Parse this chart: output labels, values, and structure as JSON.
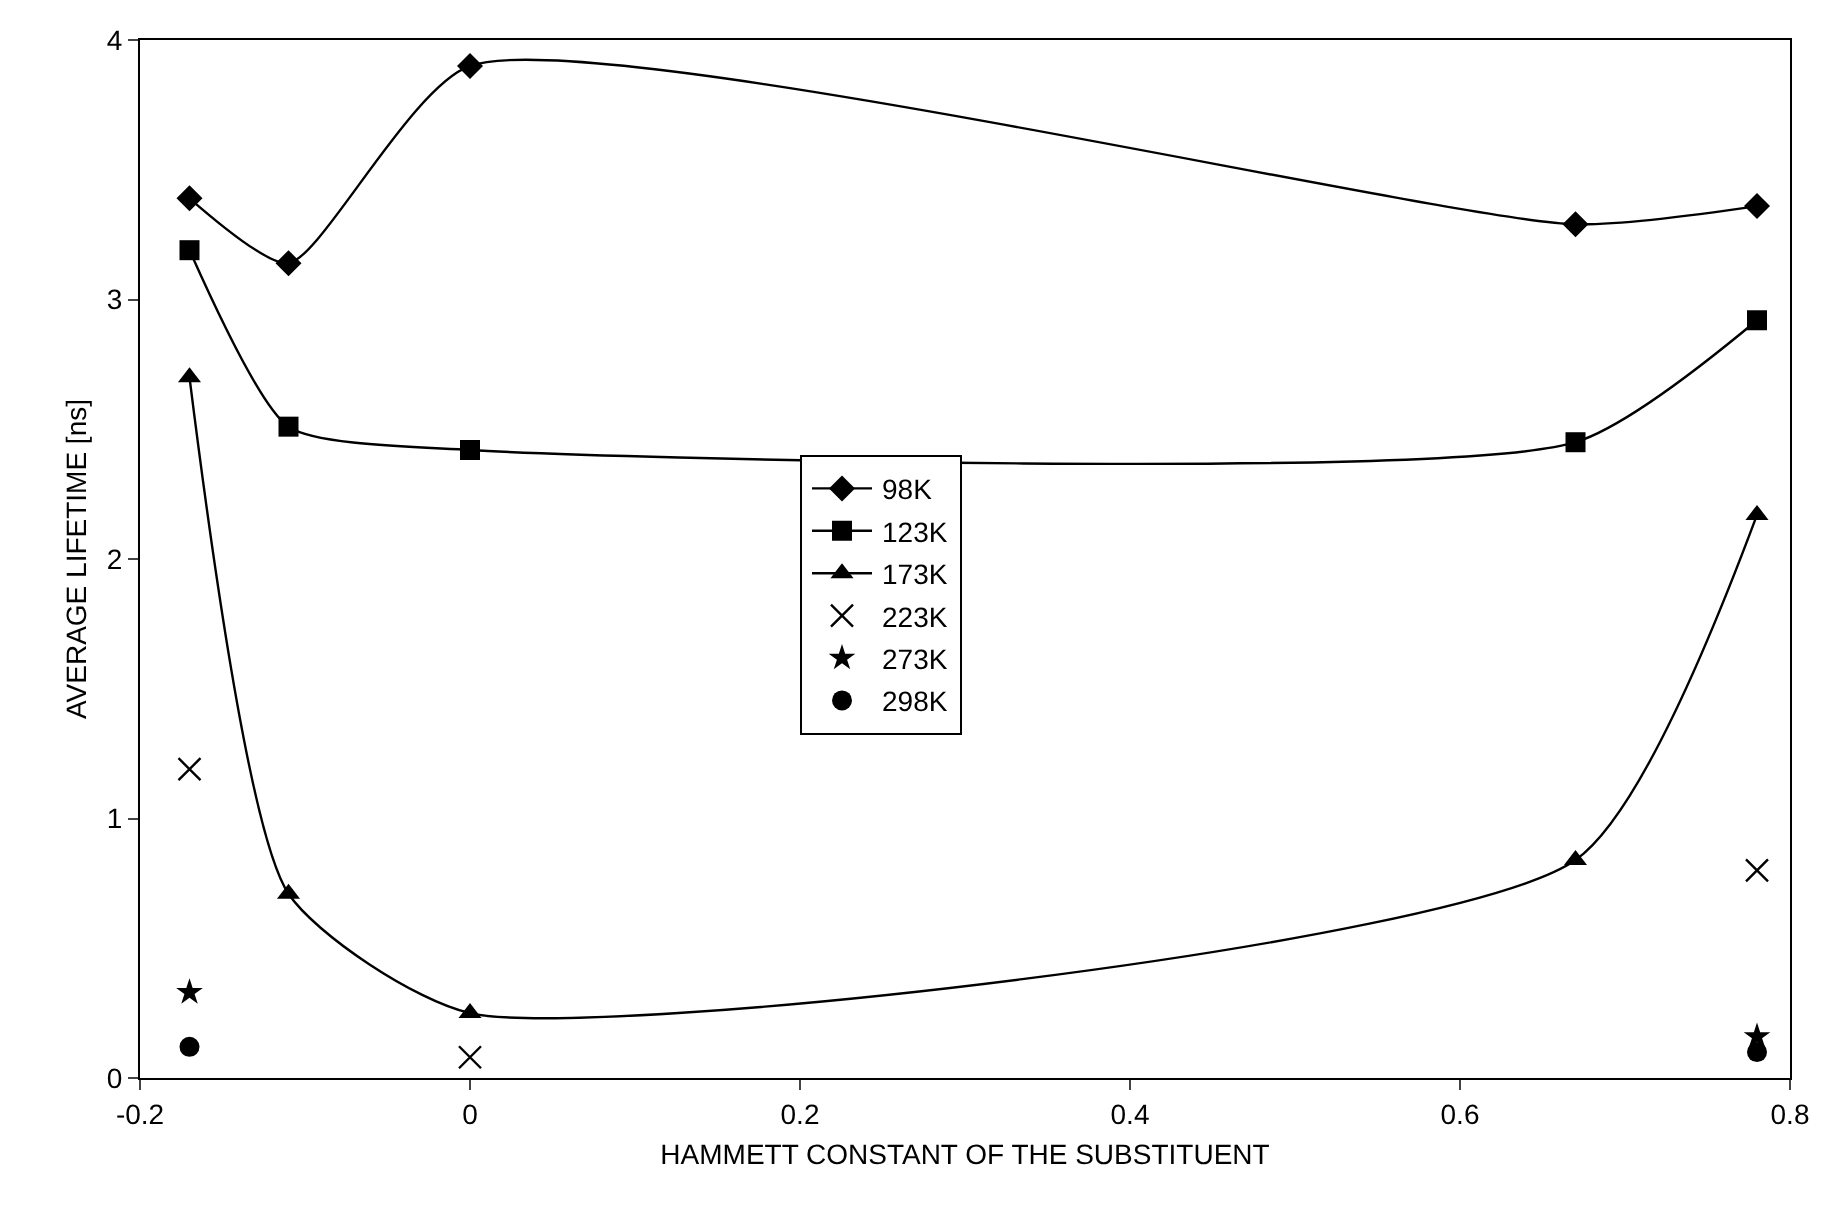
{
  "chart_data": {
    "type": "line",
    "xlabel": "HAMMETT CONSTANT OF THE SUBSTITUENT",
    "ylabel": "AVERAGE LIFETIME [ns]",
    "x": [
      -0.17,
      -0.11,
      0,
      0.67,
      0.78
    ],
    "series": [
      {
        "name": "98K",
        "color": "#000000",
        "type": "line",
        "marker": "diamond",
        "values": [
          3.39,
          3.14,
          3.9,
          3.29,
          3.36
        ]
      },
      {
        "name": "123K",
        "color": "#000000",
        "type": "line",
        "marker": "square",
        "values": [
          3.19,
          2.51,
          2.42,
          2.45,
          2.92
        ]
      },
      {
        "name": "173K",
        "color": "#000000",
        "type": "line",
        "marker": "triangle",
        "values": [
          2.7,
          0.71,
          0.25,
          0.84,
          2.17
        ]
      },
      {
        "name": "223K",
        "color": "#000000",
        "type": "scatter",
        "marker": "cross",
        "values": [
          1.19,
          null,
          0.08,
          null,
          0.8
        ]
      },
      {
        "name": "273K",
        "color": "#000000",
        "type": "scatter",
        "marker": "star",
        "values": [
          0.33,
          null,
          null,
          null,
          0.16
        ]
      },
      {
        "name": "298K",
        "color": "#000000",
        "type": "scatter",
        "marker": "circle",
        "values": [
          0.12,
          null,
          null,
          null,
          0.1
        ]
      }
    ],
    "xlim": [
      -0.2,
      0.8
    ],
    "xticks": [
      -0.2,
      0,
      0.2,
      0.4,
      0.6,
      0.8
    ],
    "ylim": [
      0,
      4
    ],
    "yticks": [
      0,
      1,
      2,
      3,
      4
    ],
    "grid": false,
    "legend": "center",
    "line_style": "solid"
  }
}
